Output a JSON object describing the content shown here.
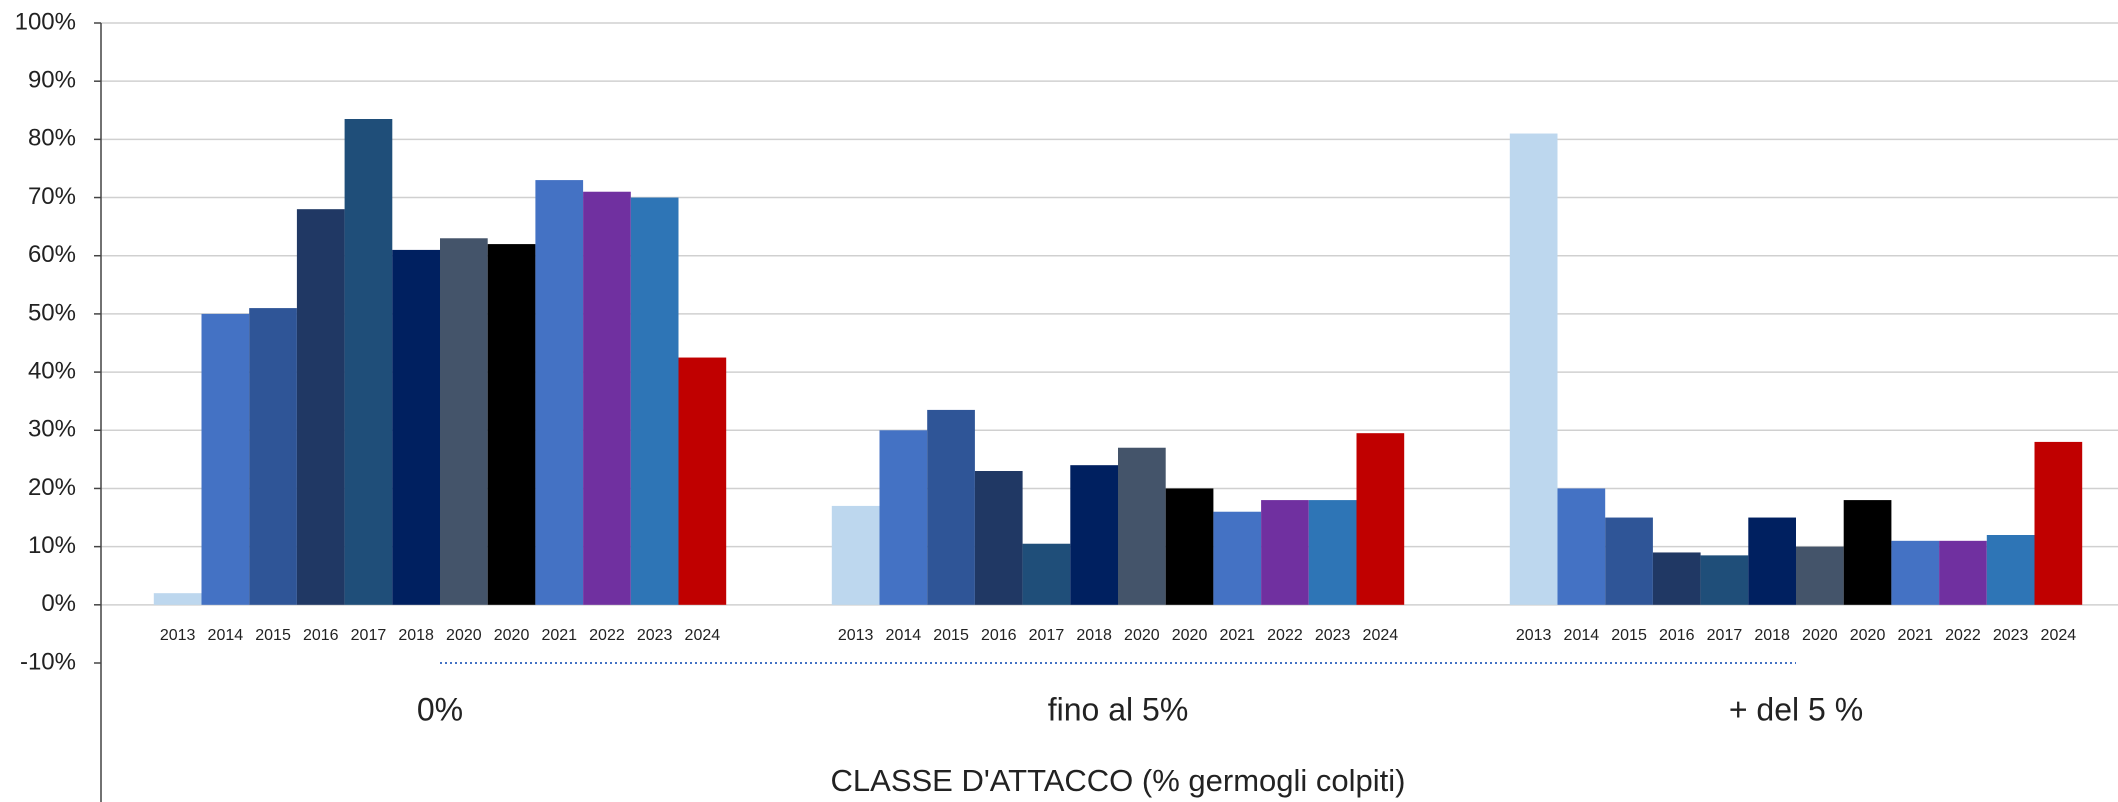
{
  "chart_data": {
    "type": "bar",
    "x_label": "CLASSE D'ATTACCO (% germogli colpiti)",
    "categories": [
      "0%",
      "fino al 5%",
      "+ del 5 %"
    ],
    "series": [
      {
        "name": "2013",
        "color": "#bdd7ee",
        "values": [
          2,
          17,
          81
        ]
      },
      {
        "name": "2014",
        "color": "#4472c4",
        "values": [
          50,
          30,
          20
        ]
      },
      {
        "name": "2015",
        "color": "#2f5597",
        "values": [
          51,
          33.5,
          15
        ]
      },
      {
        "name": "2016",
        "color": "#203864",
        "values": [
          68,
          23,
          9
        ]
      },
      {
        "name": "2017",
        "color": "#1f4e79",
        "values": [
          83.5,
          10.5,
          8.5
        ]
      },
      {
        "name": "2018",
        "color": "#002060",
        "values": [
          61,
          24,
          15
        ]
      },
      {
        "name": "2020",
        "color": "#44546a",
        "values": [
          63,
          27,
          10
        ]
      },
      {
        "name": "2020",
        "color": "#000000",
        "values": [
          62,
          20,
          18
        ]
      },
      {
        "name": "2021",
        "color": "#4472c4",
        "values": [
          73,
          16,
          11
        ]
      },
      {
        "name": "2022",
        "color": "#7030a0",
        "values": [
          71,
          18,
          11
        ]
      },
      {
        "name": "2023",
        "color": "#2e75b6",
        "values": [
          70,
          18,
          12
        ]
      },
      {
        "name": "2024",
        "color": "#c00000",
        "values": [
          42.5,
          29.5,
          28
        ]
      }
    ],
    "ylim": [
      -10,
      100
    ],
    "yticks": [
      {
        "value": -10,
        "label": "-10%"
      },
      {
        "value": 0,
        "label": "0%"
      },
      {
        "value": 10,
        "label": "10%"
      },
      {
        "value": 20,
        "label": "20%"
      },
      {
        "value": 30,
        "label": "30%"
      },
      {
        "value": 40,
        "label": "40%"
      },
      {
        "value": 50,
        "label": "50%"
      },
      {
        "value": 60,
        "label": "60%"
      },
      {
        "value": 70,
        "label": "70%"
      },
      {
        "value": 80,
        "label": "80%"
      },
      {
        "value": 90,
        "label": "90%"
      },
      {
        "value": 100,
        "label": "100%"
      }
    ],
    "grid": true
  }
}
